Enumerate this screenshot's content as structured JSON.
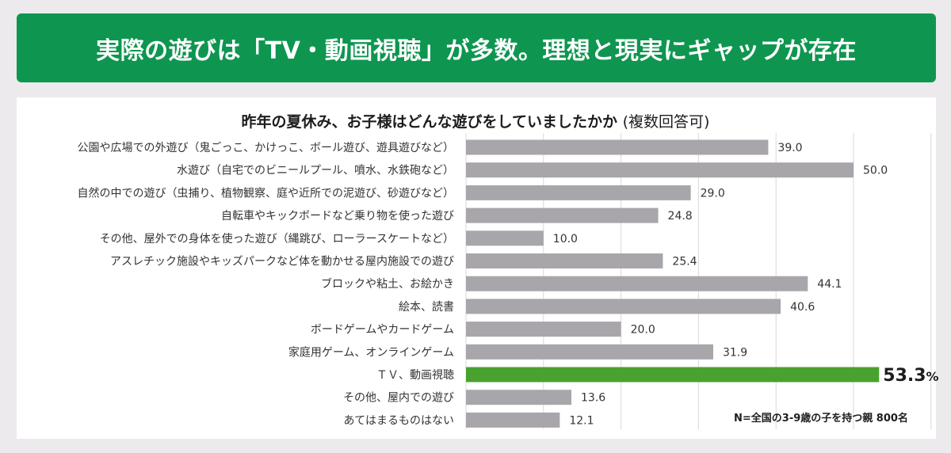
{
  "header": {
    "title": "実際の遊びは「TV・動画視聴」が多数。理想と現実にギャップが存在"
  },
  "chart_data": {
    "type": "bar",
    "orientation": "horizontal",
    "title": "昨年の夏休み、お子様はどんな遊びをしていましたかか",
    "subtitle": "(複数回答可)",
    "xlim": [
      0,
      60
    ],
    "grid": true,
    "categories": [
      "公園や広場での外遊び（鬼ごっこ、かけっこ、ボール遊び、遊具遊びなど）",
      "水遊び（自宅でのビニールプール、噴水、水鉄砲など）",
      "自然の中での遊び（虫捕り、植物観察、庭や近所での泥遊び、砂遊びなど）",
      "自転車やキックボードなど乗り物を使った遊び",
      "その他、屋外での身体を使った遊び（縄跳び、ローラースケートなど）",
      "アスレチック施設やキッズパークなど体を動かせる屋内施設での遊び",
      "ブロックや粘土、お絵かき",
      "絵本、読書",
      "ボードゲームやカードゲーム",
      "家庭用ゲーム、オンラインゲーム",
      "ＴＶ、動画視聴",
      "その他、屋内での遊び",
      "あてはまるものはない"
    ],
    "values": [
      39.0,
      50.0,
      29.0,
      24.8,
      10.0,
      25.4,
      44.1,
      40.6,
      20.0,
      31.9,
      53.3,
      13.6,
      12.1
    ],
    "labels": [
      "39.0",
      "50.0",
      "29.0",
      "24.8",
      "10.0",
      "25.4",
      "44.1",
      "40.6",
      "20.0",
      "31.9",
      "53.3",
      "13.6",
      "12.1"
    ],
    "highlight_index": 10,
    "highlight_unit": "%",
    "bar_color": "#a8a6aa",
    "highlight_color": "#49a22f",
    "grid_color": "#d9d9d9"
  },
  "footnote": "N=全国の3-9歳の子を持つ親 800名"
}
